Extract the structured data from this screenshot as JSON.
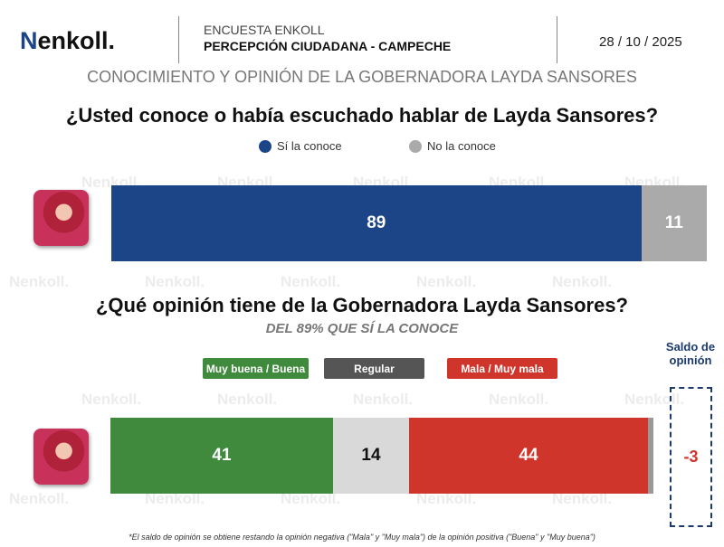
{
  "header": {
    "logo": "enkoll.",
    "survey": "ENCUESTA ENKOLL",
    "subtitle": "PERCEPCIÓN CIUDADANA - CAMPECHE",
    "date": "28 / 10 / 2025",
    "main_title": "CONOCIMIENTO Y OPINIÓN DE LA GOBERNADORA LAYDA SANSORES"
  },
  "chart_data": [
    {
      "type": "bar",
      "orientation": "horizontal-stacked",
      "title": "¿Usted conoce o había escuchado hablar de Layda Sansores?",
      "legend": "top",
      "series": [
        {
          "name": "Sí la conoce",
          "values": [
            89
          ],
          "color": "#1c4587"
        },
        {
          "name": "No la conoce",
          "values": [
            11
          ],
          "color": "#aaaaaa"
        }
      ]
    },
    {
      "type": "bar",
      "orientation": "horizontal-stacked",
      "title": "¿Qué opinión tiene de la Gobernadora Layda Sansores?",
      "subtitle": "DEL 89% QUE SÍ LA CONOCE",
      "legend": "top",
      "series": [
        {
          "name": "Muy buena / Buena",
          "values": [
            41
          ],
          "color": "#3f8a3c"
        },
        {
          "name": "Regular",
          "values": [
            14
          ],
          "color": "#d9d9d9",
          "legend_color": "#555555"
        },
        {
          "name": "Mala / Muy mala",
          "values": [
            44
          ],
          "color": "#d0352b"
        },
        {
          "values": [
            1
          ],
          "color": "#999999"
        }
      ],
      "saldo": {
        "label": "Saldo de opinión",
        "value": "-3"
      }
    }
  ],
  "footnote": "*El saldo de opinión se obtiene restando la opinión negativa (\"Mala\" y \"Muy mala\") de la opinión positiva (\"Buena\" y \"Muy buena\")",
  "watermark": "enkoll."
}
